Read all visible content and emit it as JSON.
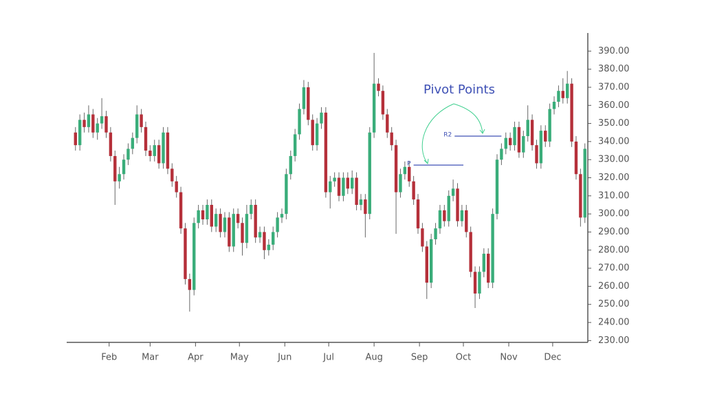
{
  "chart_data": {
    "type": "candlestick",
    "x": [
      9,
      12,
      15,
      18,
      21,
      24,
      27,
      30,
      33,
      36,
      39,
      42,
      45,
      48,
      51,
      54,
      57,
      60,
      63,
      66,
      69,
      72,
      75,
      78,
      81,
      84,
      87,
      90,
      93,
      96,
      99,
      102,
      105,
      108,
      111,
      114,
      117,
      120,
      123,
      126,
      129,
      132,
      135,
      138,
      141,
      144,
      147,
      150,
      153,
      156,
      159,
      162,
      165,
      168,
      171,
      174,
      177,
      180,
      183,
      186,
      189,
      192,
      195,
      198,
      201,
      204,
      207,
      210,
      213,
      216,
      219,
      222,
      225,
      228,
      231,
      234,
      237,
      240,
      243,
      246,
      249,
      252,
      255,
      258,
      261,
      264,
      267,
      270,
      273,
      276,
      279,
      282,
      285,
      288,
      291,
      294,
      297,
      300,
      303,
      306,
      309,
      312,
      315,
      318,
      321,
      324,
      327,
      330,
      333,
      336,
      339,
      342,
      345,
      348,
      351,
      354,
      357
    ],
    "open": [
      345,
      338,
      352,
      348,
      355,
      345,
      350,
      354,
      345,
      332,
      318,
      322,
      330,
      336,
      342,
      355,
      348,
      335,
      332,
      338,
      328,
      345,
      325,
      318,
      312,
      292,
      264,
      258,
      295,
      302,
      297,
      305,
      293,
      300,
      290,
      298,
      282,
      300,
      295,
      284,
      300,
      305,
      287,
      290,
      280,
      283,
      290,
      298,
      300,
      322,
      332,
      344,
      358,
      370,
      352,
      338,
      350,
      356,
      312,
      318,
      320,
      310,
      320,
      314,
      320,
      305,
      308,
      300,
      345,
      372,
      368,
      355,
      345,
      338,
      312,
      322,
      326,
      318,
      308,
      292,
      282,
      262,
      286,
      292,
      302,
      296,
      310,
      314,
      296,
      302,
      290,
      268,
      256,
      268,
      278,
      262,
      300,
      330,
      336,
      342,
      338,
      348,
      334,
      343,
      352,
      338,
      328,
      346,
      340,
      358,
      362,
      368,
      364,
      372,
      340,
      322,
      298
    ],
    "high": [
      348,
      355,
      356,
      360,
      358,
      353,
      364,
      357,
      348,
      335,
      326,
      333,
      339,
      345,
      360,
      358,
      351,
      338,
      341,
      341,
      348,
      348,
      328,
      321,
      315,
      295,
      267,
      298,
      305,
      305,
      308,
      308,
      303,
      303,
      301,
      301,
      303,
      303,
      298,
      305,
      308,
      308,
      293,
      293,
      286,
      293,
      301,
      303,
      325,
      335,
      347,
      361,
      374,
      373,
      355,
      353,
      359,
      359,
      321,
      323,
      323,
      323,
      323,
      324,
      323,
      311,
      311,
      348,
      389,
      375,
      371,
      358,
      348,
      341,
      325,
      329,
      329,
      321,
      311,
      295,
      285,
      289,
      295,
      305,
      305,
      313,
      319,
      317,
      305,
      305,
      293,
      271,
      271,
      281,
      281,
      303,
      333,
      339,
      345,
      345,
      351,
      351,
      346,
      360,
      355,
      341,
      349,
      349,
      361,
      365,
      371,
      375,
      379,
      375,
      343,
      325,
      339
    ],
    "low": [
      335,
      335,
      345,
      345,
      342,
      341,
      347,
      342,
      329,
      305,
      314,
      319,
      327,
      333,
      339,
      345,
      332,
      329,
      329,
      325,
      325,
      322,
      315,
      309,
      289,
      261,
      246,
      255,
      292,
      294,
      294,
      290,
      290,
      287,
      287,
      279,
      279,
      292,
      277,
      281,
      297,
      284,
      284,
      275,
      277,
      280,
      287,
      295,
      297,
      319,
      329,
      341,
      355,
      349,
      335,
      335,
      347,
      309,
      303,
      315,
      307,
      307,
      311,
      311,
      302,
      302,
      287,
      297,
      342,
      365,
      352,
      342,
      335,
      289,
      309,
      319,
      315,
      305,
      289,
      279,
      253,
      259,
      283,
      289,
      293,
      293,
      307,
      293,
      293,
      287,
      265,
      248,
      253,
      265,
      259,
      259,
      297,
      327,
      333,
      335,
      335,
      331,
      331,
      340,
      335,
      325,
      325,
      337,
      337,
      355,
      359,
      361,
      361,
      337,
      319,
      293,
      295
    ],
    "close": [
      338,
      352,
      348,
      355,
      345,
      350,
      354,
      345,
      332,
      318,
      322,
      330,
      336,
      342,
      355,
      348,
      335,
      332,
      338,
      328,
      345,
      325,
      318,
      312,
      292,
      264,
      258,
      295,
      302,
      297,
      305,
      293,
      300,
      290,
      298,
      282,
      300,
      295,
      284,
      300,
      305,
      287,
      290,
      280,
      283,
      290,
      298,
      300,
      322,
      332,
      344,
      358,
      370,
      352,
      338,
      350,
      356,
      312,
      318,
      320,
      310,
      320,
      314,
      320,
      305,
      308,
      300,
      345,
      372,
      368,
      355,
      345,
      338,
      312,
      322,
      326,
      318,
      308,
      292,
      282,
      262,
      286,
      292,
      302,
      296,
      310,
      314,
      296,
      302,
      290,
      268,
      256,
      268,
      278,
      262,
      300,
      330,
      336,
      342,
      338,
      348,
      334,
      343,
      352,
      338,
      328,
      346,
      340,
      358,
      362,
      368,
      364,
      372,
      340,
      322,
      298,
      336
    ],
    "xlim": [
      3,
      359
    ],
    "ylim": [
      229,
      400
    ],
    "xticks": [
      {
        "value": 32,
        "label": "Feb"
      },
      {
        "value": 60,
        "label": "Mar"
      },
      {
        "value": 91,
        "label": "Apr"
      },
      {
        "value": 121,
        "label": "May"
      },
      {
        "value": 152,
        "label": "Jun"
      },
      {
        "value": 182,
        "label": "Jul"
      },
      {
        "value": 213,
        "label": "Aug"
      },
      {
        "value": 244,
        "label": "Sep"
      },
      {
        "value": 274,
        "label": "Oct"
      },
      {
        "value": 305,
        "label": "Nov"
      },
      {
        "value": 335,
        "label": "Dec"
      }
    ],
    "yticks": [
      {
        "value": 230,
        "label": "230.00"
      },
      {
        "value": 240,
        "label": "240.00"
      },
      {
        "value": 250,
        "label": "250.00"
      },
      {
        "value": 260,
        "label": "260.00"
      },
      {
        "value": 270,
        "label": "270.00"
      },
      {
        "value": 280,
        "label": "280.00"
      },
      {
        "value": 290,
        "label": "290.00"
      },
      {
        "value": 300,
        "label": "300.00"
      },
      {
        "value": 310,
        "label": "310.00"
      },
      {
        "value": 320,
        "label": "320.00"
      },
      {
        "value": 330,
        "label": "330.00"
      },
      {
        "value": 340,
        "label": "340.00"
      },
      {
        "value": 350,
        "label": "350.00"
      },
      {
        "value": 360,
        "label": "360.00"
      },
      {
        "value": 370,
        "label": "370.00"
      },
      {
        "value": 380,
        "label": "380.00"
      },
      {
        "value": 390,
        "label": "390.00"
      }
    ],
    "up_color": "#3aad7a",
    "down_color": "#b5303a",
    "annotation": "Pivot Points",
    "levels": [
      {
        "label": "P",
        "value": 327,
        "x": [
          240,
          274
        ]
      },
      {
        "label": "R2",
        "value": 343,
        "x": [
          268,
          300
        ]
      }
    ]
  }
}
